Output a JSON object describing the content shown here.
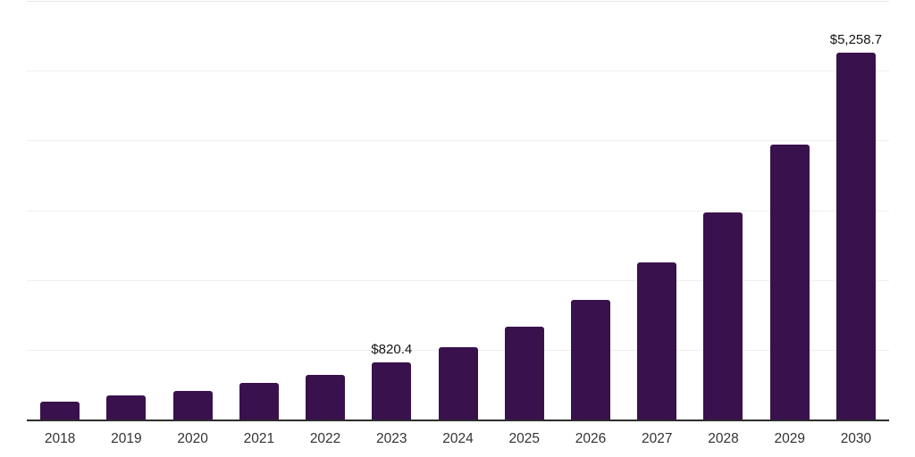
{
  "chart_data": {
    "type": "bar",
    "title": "",
    "xlabel": "",
    "ylabel": "",
    "categories": [
      "2018",
      "2019",
      "2020",
      "2021",
      "2022",
      "2023",
      "2024",
      "2025",
      "2026",
      "2027",
      "2028",
      "2029",
      "2030"
    ],
    "values": [
      255,
      340,
      410,
      525,
      645,
      820.4,
      1040,
      1330,
      1715,
      2255,
      2965,
      3940,
      5258.7
    ],
    "value_labels": {
      "2023": "$820.4",
      "2030": "$5,258.7"
    },
    "ylim": [
      0,
      6000
    ],
    "gridline_values": [
      1000,
      2000,
      3000,
      4000,
      5000,
      6000
    ],
    "grid": "horizontal",
    "legend": "none",
    "colors": {
      "bar": "#39114D",
      "axis": "#2D2D2D",
      "gridline": "#EFEFEF",
      "top_gridline": "#E5E5E5",
      "tick_label": "#333333",
      "value_label": "#141414",
      "background": "#FFFFFF"
    }
  }
}
